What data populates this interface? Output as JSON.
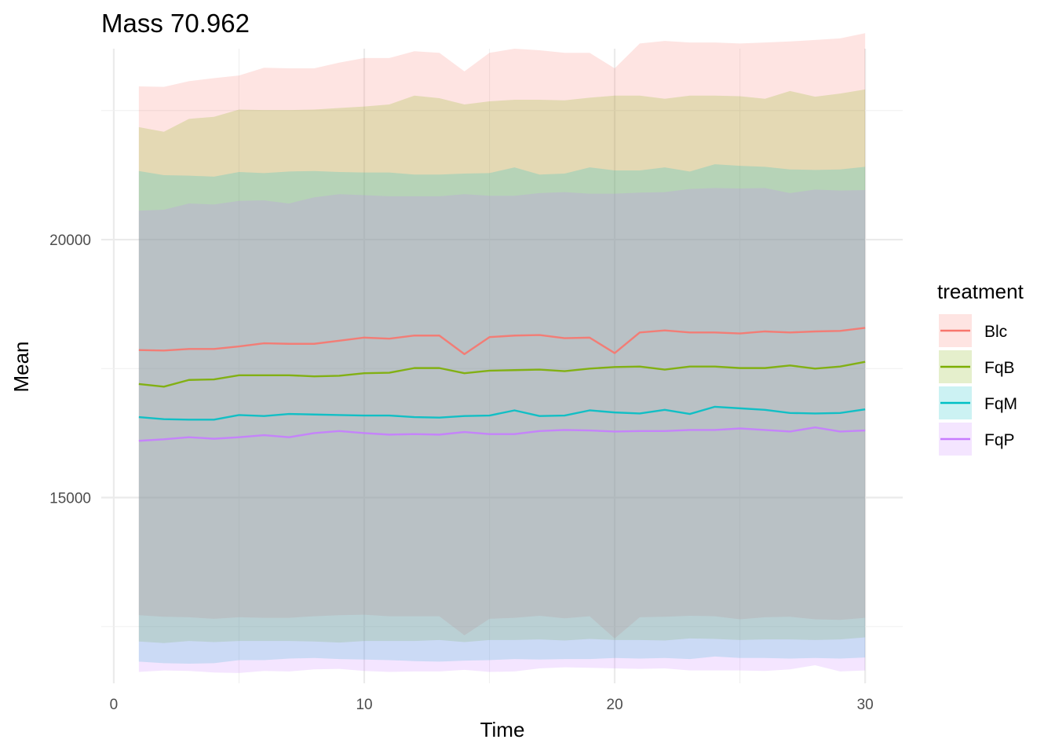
{
  "chart_data": {
    "type": "area",
    "title": "Mass 70.962",
    "xlabel": "Time",
    "ylabel": "Mean",
    "xlim": [
      -0.5,
      31.5
    ],
    "ylim": [
      11400,
      23700
    ],
    "x_ticks": [
      0,
      10,
      20,
      30
    ],
    "y_ticks": [
      15000,
      20000
    ],
    "grid": true,
    "legend": {
      "title": "treatment",
      "position": "right"
    },
    "x": [
      1,
      2,
      3,
      4,
      5,
      6,
      7,
      8,
      9,
      10,
      11,
      12,
      13,
      14,
      15,
      16,
      17,
      18,
      19,
      20,
      21,
      22,
      23,
      24,
      25,
      26,
      27,
      28,
      29,
      30
    ],
    "series": [
      {
        "name": "Blc",
        "color": "#F8766D",
        "mean": [
          17860,
          17850,
          17880,
          17880,
          17930,
          17990,
          17980,
          17980,
          18040,
          18100,
          18080,
          18140,
          18140,
          17780,
          18110,
          18140,
          18150,
          18090,
          18100,
          17800,
          18200,
          18240,
          18200,
          18200,
          18180,
          18220,
          18200,
          18220,
          18230,
          18290
        ],
        "upper": [
          22970,
          22960,
          23070,
          23130,
          23180,
          23330,
          23320,
          23320,
          23430,
          23520,
          23520,
          23650,
          23620,
          23260,
          23620,
          23700,
          23670,
          23620,
          23620,
          23320,
          23800,
          23850,
          23820,
          23820,
          23800,
          23820,
          23840,
          23870,
          23900,
          24000
        ],
        "lower": [
          12720,
          12690,
          12680,
          12650,
          12680,
          12670,
          12670,
          12700,
          12720,
          12730,
          12700,
          12700,
          12700,
          12330,
          12650,
          12670,
          12710,
          12660,
          12700,
          12270,
          12680,
          12690,
          12710,
          12700,
          12640,
          12680,
          12690,
          12640,
          12630,
          12670
        ]
      },
      {
        "name": "FqB",
        "color": "#7CAE00",
        "mean": [
          17200,
          17150,
          17280,
          17290,
          17370,
          17370,
          17370,
          17350,
          17360,
          17410,
          17420,
          17510,
          17510,
          17410,
          17460,
          17470,
          17480,
          17450,
          17500,
          17530,
          17540,
          17480,
          17540,
          17540,
          17510,
          17510,
          17560,
          17500,
          17540,
          17630
        ],
        "upper": [
          22180,
          22090,
          22340,
          22380,
          22520,
          22510,
          22510,
          22520,
          22550,
          22580,
          22620,
          22790,
          22740,
          22620,
          22680,
          22710,
          22710,
          22700,
          22750,
          22790,
          22790,
          22730,
          22790,
          22790,
          22780,
          22730,
          22880,
          22770,
          22830,
          22910
        ],
        "lower": [
          12210,
          12180,
          12220,
          12200,
          12220,
          12220,
          12220,
          12210,
          12190,
          12220,
          12220,
          12220,
          12240,
          12200,
          12240,
          12240,
          12250,
          12230,
          12260,
          12240,
          12240,
          12230,
          12270,
          12260,
          12240,
          12250,
          12250,
          12240,
          12250,
          12290
        ]
      },
      {
        "name": "FqM",
        "color": "#00BFC4",
        "mean": [
          16560,
          16520,
          16510,
          16510,
          16600,
          16580,
          16620,
          16610,
          16600,
          16590,
          16590,
          16560,
          16550,
          16580,
          16590,
          16690,
          16580,
          16590,
          16690,
          16650,
          16630,
          16700,
          16620,
          16760,
          16730,
          16700,
          16640,
          16630,
          16640,
          16710
        ],
        "upper": [
          21330,
          21250,
          21240,
          21220,
          21310,
          21290,
          21320,
          21330,
          21310,
          21300,
          21300,
          21260,
          21260,
          21280,
          21290,
          21400,
          21260,
          21280,
          21400,
          21340,
          21340,
          21400,
          21320,
          21460,
          21430,
          21410,
          21360,
          21350,
          21360,
          21410
        ],
        "lower": [
          11820,
          11790,
          11780,
          11790,
          11850,
          11850,
          11880,
          11890,
          11870,
          11860,
          11850,
          11830,
          11820,
          11840,
          11850,
          11870,
          11860,
          11870,
          11870,
          11890,
          11880,
          11890,
          11870,
          11920,
          11890,
          11890,
          11880,
          11890,
          11880,
          11900
        ]
      },
      {
        "name": "FqP",
        "color": "#C77CFF",
        "mean": [
          16100,
          16130,
          16170,
          16140,
          16170,
          16210,
          16170,
          16250,
          16290,
          16250,
          16220,
          16230,
          16220,
          16270,
          16230,
          16230,
          16290,
          16310,
          16300,
          16280,
          16290,
          16290,
          16310,
          16310,
          16340,
          16310,
          16280,
          16360,
          16280,
          16300
        ],
        "upper": [
          20560,
          20580,
          20700,
          20680,
          20750,
          20760,
          20700,
          20820,
          20880,
          20860,
          20840,
          20840,
          20840,
          20880,
          20850,
          20850,
          20900,
          20920,
          20890,
          20890,
          20910,
          20920,
          20980,
          21000,
          20990,
          21000,
          20900,
          20970,
          20950,
          20960
        ],
        "lower": [
          11620,
          11650,
          11640,
          11610,
          11600,
          11640,
          11630,
          11670,
          11680,
          11640,
          11620,
          11630,
          11630,
          11660,
          11620,
          11630,
          11690,
          11710,
          11700,
          11690,
          11680,
          11690,
          11650,
          11650,
          11650,
          11640,
          11670,
          11750,
          11630,
          11650
        ]
      }
    ]
  }
}
